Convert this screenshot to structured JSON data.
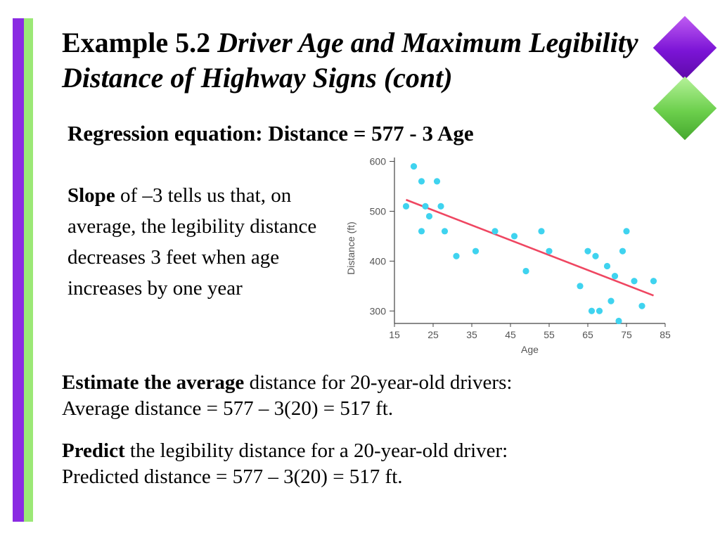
{
  "slide": {
    "title_main": "Example 5.2",
    "title_sub": "Driver Age and Maximum Legibility Distance of Highway Signs (cont)",
    "regression_equation": "Regression equation: Distance = 577 - 3 Age",
    "slope": {
      "lead": "Slope",
      "rest": " of –3 tells us that, on average, the legibility distance decreases 3 feet when age increases by one year"
    },
    "estimate": {
      "lead": "Estimate the average",
      "rest": " distance for 20-year-old drivers:",
      "line2": "Average distance = 577 – 3(20) = 517 ft."
    },
    "predict": {
      "lead": "Predict",
      "rest": " the legibility distance for a 20-year-old driver:",
      "line2": "Predicted distance = 577 – 3(20) = 517 ft."
    }
  },
  "colors": {
    "left_bar_purple": "#8a2be2",
    "left_bar_green": "#9be876",
    "points": "#3fd3ef",
    "regression_line": "#ef4661",
    "axis": "#444444"
  },
  "chart_data": {
    "type": "scatter",
    "xlabel": "Age",
    "ylabel": "Distance (ft)",
    "xlim": [
      15,
      85
    ],
    "ylim": [
      275,
      605
    ],
    "x_ticks": [
      15,
      25,
      35,
      45,
      55,
      65,
      75,
      85
    ],
    "y_ticks": [
      300,
      400,
      500,
      600
    ],
    "grid": false,
    "points": [
      [
        18,
        510
      ],
      [
        20,
        590
      ],
      [
        22,
        560
      ],
      [
        22,
        460
      ],
      [
        23,
        510
      ],
      [
        24,
        490
      ],
      [
        26,
        560
      ],
      [
        27,
        510
      ],
      [
        28,
        460
      ],
      [
        31,
        410
      ],
      [
        36,
        420
      ],
      [
        41,
        460
      ],
      [
        46,
        450
      ],
      [
        49,
        380
      ],
      [
        53,
        460
      ],
      [
        55,
        420
      ],
      [
        63,
        350
      ],
      [
        65,
        420
      ],
      [
        66,
        300
      ],
      [
        67,
        410
      ],
      [
        68,
        300
      ],
      [
        70,
        390
      ],
      [
        71,
        320
      ],
      [
        72,
        370
      ],
      [
        73,
        280
      ],
      [
        74,
        420
      ],
      [
        75,
        460
      ],
      [
        77,
        360
      ],
      [
        79,
        310
      ],
      [
        82,
        360
      ]
    ],
    "fit_line": {
      "intercept": 577,
      "slope": -3,
      "x_range": [
        18,
        82
      ]
    }
  }
}
